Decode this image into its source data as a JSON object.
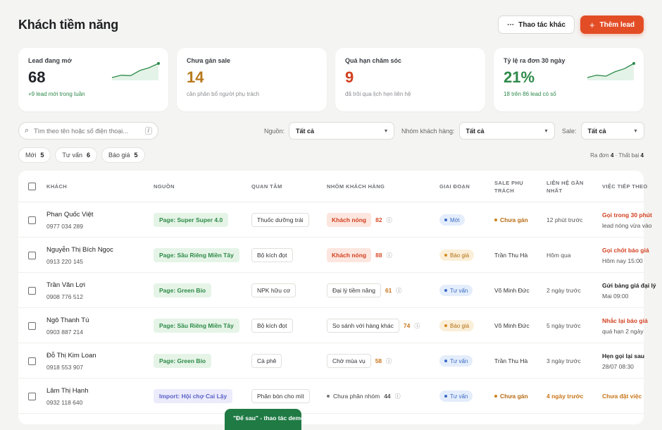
{
  "page": {
    "title": "Khách tiềm năng"
  },
  "header": {
    "more_label": "Thao tác khác",
    "more_icon": "ellipsis-icon",
    "add_label": "Thêm lead",
    "add_icon": "plus-icon"
  },
  "stats": [
    {
      "label": "Lead đang mở",
      "value": "68",
      "sub": "+9 lead mới trong tuần",
      "value_color": "#1f2328",
      "sub_color": "green",
      "sparkline": [
        3,
        4,
        3.8,
        6,
        7.2,
        9
      ]
    },
    {
      "label": "Chưa gán sale",
      "value": "14",
      "sub": "cần phân bổ người phụ trách",
      "value_color": "#b8791c",
      "sub_color": "gray"
    },
    {
      "label": "Quá hạn chăm sóc",
      "value": "9",
      "sub": "đã trôi qua lịch hẹn liên hệ",
      "value_color": "#d23f1f",
      "sub_color": "gray"
    },
    {
      "label": "Tỷ lệ ra đơn 30 ngày",
      "value": "21%",
      "sub": "18 trên 86 lead có số",
      "value_color": "#2e8a4a",
      "sub_color": "green",
      "sparkline": [
        3,
        4,
        3.6,
        5.5,
        6.8,
        9
      ]
    }
  ],
  "filters": {
    "search_placeholder": "Tìm theo tên hoặc số điện thoại...",
    "search_shortcut": "/",
    "source": {
      "label": "Nguồn:",
      "value": "Tất cả"
    },
    "group": {
      "label": "Nhóm khách hàng:",
      "value": "Tất cả"
    },
    "sale": {
      "label": "Sale:",
      "value": "Tất cả"
    }
  },
  "chips": [
    {
      "label": "Mới",
      "count": "5"
    },
    {
      "label": "Tư vấn",
      "count": "6"
    },
    {
      "label": "Báo giá",
      "count": "5"
    }
  ],
  "summary": {
    "won_label": "Ra đơn",
    "won": "4",
    "sep": "·",
    "lost_label": "Thất bại",
    "lost": "4"
  },
  "table": {
    "columns": {
      "customer": "KHÁCH",
      "source": "NGUỒN",
      "interest": "QUAN TÂM",
      "group": "NHÓM KHÁCH HÀNG",
      "stage": "GIAI ĐOẠN",
      "sale": "SALE PHỤ TRÁCH",
      "contact": "LIÊN HỆ GẦN NHẤT",
      "next": "VIỆC TIẾP THEO"
    },
    "rows": [
      {
        "name": "Phan Quốc Việt",
        "phone": "0977 034 289",
        "source": "Page: Super Super 4.0",
        "source_type": "page",
        "interest": "Thuốc dưỡng trái",
        "group": "Khách nóng",
        "group_type": "hot",
        "score": "82",
        "score_color": "red",
        "stage": "Mới",
        "stage_color": "blue",
        "sale": "Chưa gán",
        "sale_unassigned": true,
        "contact": "12 phút trước",
        "contact_warn": false,
        "next_title": "Gọi trong 30 phút",
        "next_color": "red",
        "next_sub": "lead nóng vừa vào"
      },
      {
        "name": "Nguyễn Thị Bích Ngọc",
        "phone": "0913 220 145",
        "source": "Page: Sầu Riêng Miền Tây",
        "source_type": "page",
        "interest": "Bộ kích đọt",
        "group": "Khách nóng",
        "group_type": "hot",
        "score": "88",
        "score_color": "red",
        "stage": "Báo giá",
        "stage_color": "amber",
        "sale": "Trần Thu Hà",
        "sale_unassigned": false,
        "contact": "Hôm qua",
        "contact_warn": false,
        "next_title": "Gọi chốt báo giá",
        "next_color": "red",
        "next_sub": "Hôm nay 15:00"
      },
      {
        "name": "Trần Văn Lợi",
        "phone": "0908 776 512",
        "source": "Page: Green Bio",
        "source_type": "page",
        "interest": "NPK hữu cơ",
        "group": "Đại lý tiềm năng",
        "group_type": "plain",
        "score": "61",
        "score_color": "orange",
        "stage": "Tư vấn",
        "stage_color": "blue",
        "sale": "Võ Minh Đức",
        "sale_unassigned": false,
        "contact": "2 ngày trước",
        "contact_warn": false,
        "next_title": "Gửi bảng giá đại lý",
        "next_color": "dark",
        "next_sub": "Mai 09:00"
      },
      {
        "name": "Ngô Thanh Tú",
        "phone": "0903 887 214",
        "source": "Page: Sầu Riêng Miền Tây",
        "source_type": "page",
        "interest": "Bộ kích đọt",
        "group": "So sánh với hàng khác",
        "group_type": "plain",
        "score": "74",
        "score_color": "orange",
        "stage": "Báo giá",
        "stage_color": "amber",
        "sale": "Võ Minh Đức",
        "sale_unassigned": false,
        "contact": "5 ngày trước",
        "contact_warn": false,
        "next_title": "Nhắc lại báo giá",
        "next_color": "red",
        "next_sub": "quá hạn 2 ngày"
      },
      {
        "name": "Đỗ Thị Kim Loan",
        "phone": "0918 553 907",
        "source": "Page: Green Bio",
        "source_type": "page",
        "interest": "Cà phê",
        "group": "Chờ mùa vụ",
        "group_type": "plain",
        "score": "58",
        "score_color": "orange",
        "stage": "Tư vấn",
        "stage_color": "blue",
        "sale": "Trần Thu Hà",
        "sale_unassigned": false,
        "contact": "3 ngày trước",
        "contact_warn": false,
        "next_title": "Hẹn gọi lại sau",
        "next_color": "dark",
        "next_sub": "28/07 08:30"
      },
      {
        "name": "Lâm Thị Hạnh",
        "phone": "0932 118 640",
        "source": "Import: Hội chợ Cai Lậy",
        "source_type": "import",
        "interest": "Phân bón cho mít",
        "group": "Chưa phân nhóm",
        "group_type": "none",
        "score": "44",
        "score_color": "gray",
        "stage": "Tư vấn",
        "stage_color": "blue",
        "sale": "Chưa gán",
        "sale_unassigned": true,
        "contact": "4 ngày trước",
        "contact_warn": true,
        "next_title": "Chưa đặt việc",
        "next_color": "orange",
        "next_sub": ""
      }
    ]
  },
  "toast": {
    "text": "\"Để sau\" - thao tác demo"
  }
}
